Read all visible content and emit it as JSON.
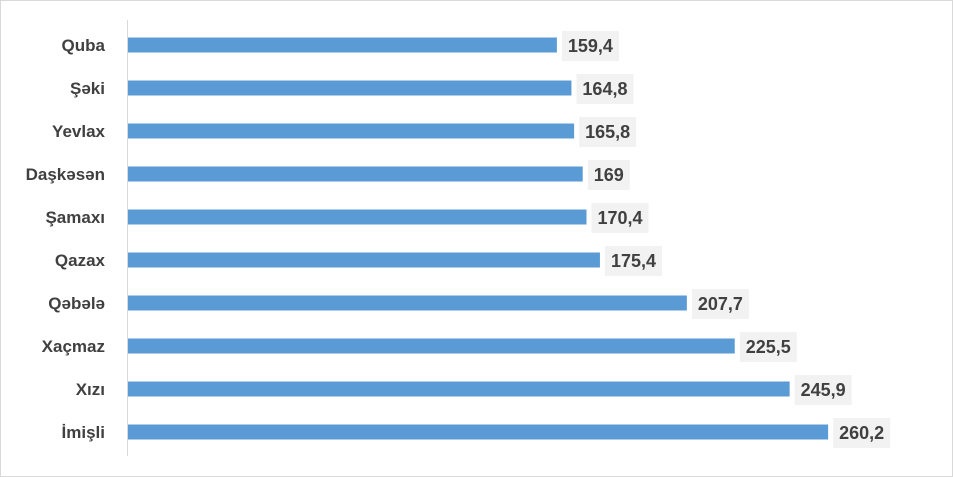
{
  "chart_data": {
    "type": "bar",
    "orientation": "horizontal",
    "categories": [
      "Quba",
      "Şəki",
      "Yevlax",
      "Daşkəsən",
      "Şamaxı",
      "Qazax",
      "Qəbələ",
      "Xaçmaz",
      "Xızı",
      "İmişli"
    ],
    "values": [
      159.4,
      164.8,
      165.8,
      169,
      170.4,
      175.4,
      207.7,
      225.5,
      245.9,
      260.2
    ],
    "data_labels": [
      "159,4",
      "164,8",
      "165,8",
      "169",
      "170,4",
      "175,4",
      "207,7",
      "225,5",
      "245,9",
      "260,2"
    ],
    "title": "",
    "xlabel": "",
    "ylabel": "",
    "xlim": [
      0,
      300
    ],
    "grid": false,
    "legend": "none",
    "colors": {
      "bar": "#5b9bd5",
      "label_background": "#f2f2f2",
      "text": "#404040",
      "axis": "#d9d9d9"
    }
  }
}
